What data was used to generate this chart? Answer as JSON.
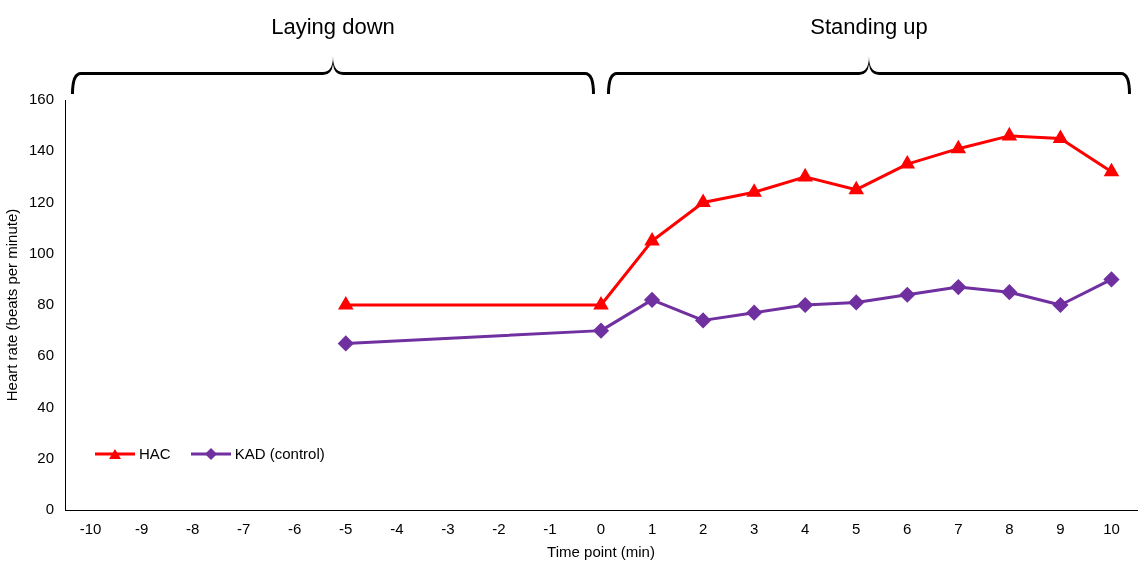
{
  "chart_data": {
    "type": "line",
    "xlabel": "Time point (min)",
    "ylabel": "Heart rate (beats per minute)",
    "categories": [
      "-10",
      "-9",
      "-8",
      "-7",
      "-6",
      "-5",
      "-4",
      "-3",
      "-2",
      "-1",
      "0",
      "1",
      "2",
      "3",
      "4",
      "5",
      "6",
      "7",
      "8",
      "9",
      "10"
    ],
    "series": [
      {
        "name": "HAC",
        "color": "#ff0000",
        "marker": "triangle",
        "values": [
          null,
          null,
          null,
          null,
          null,
          80,
          null,
          null,
          null,
          null,
          80,
          105,
          120,
          124,
          130,
          125,
          135,
          141,
          146,
          145,
          132
        ]
      },
      {
        "name": "KAD (control)",
        "color": "#7030a0",
        "marker": "diamond",
        "values": [
          null,
          null,
          null,
          null,
          null,
          65,
          null,
          null,
          null,
          null,
          70,
          82,
          74,
          77,
          80,
          81,
          84,
          87,
          85,
          80,
          90
        ]
      }
    ],
    "ylim": [
      0,
      160
    ],
    "yticks": [
      0,
      20,
      40,
      60,
      80,
      100,
      120,
      140,
      160
    ],
    "grid": false,
    "legend": "bottom left",
    "line_style": "solid",
    "annotations": [
      "Laying down",
      "Standing up"
    ]
  }
}
